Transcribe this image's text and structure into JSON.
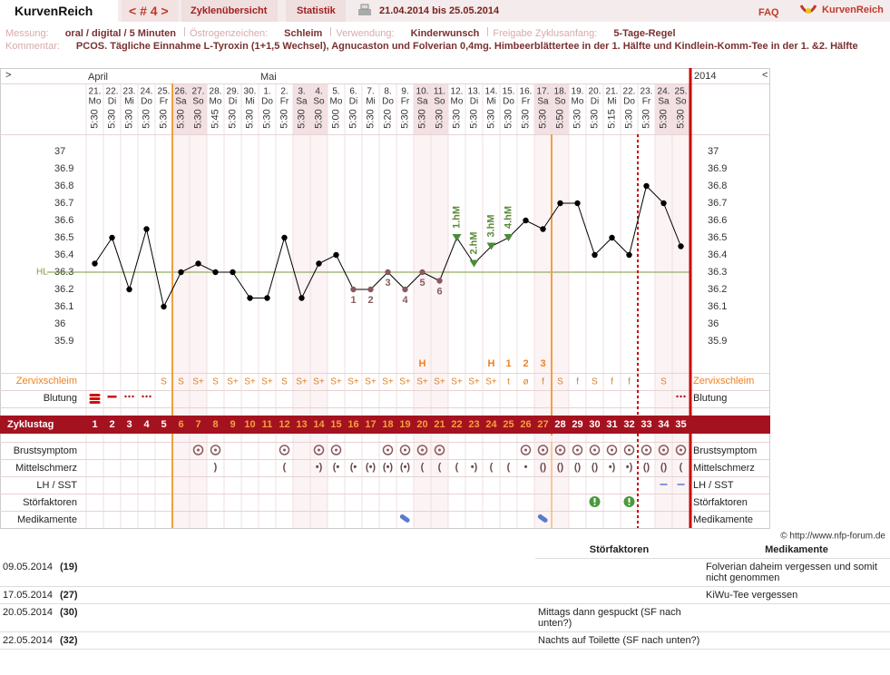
{
  "header": {
    "brand": "KurvenReich",
    "cycle_nav": "< # 4 >",
    "tabs": [
      "Zyklenübersicht",
      "Statistik"
    ],
    "date_range": "21.04.2014 bis 25.05.2014",
    "faq": "FAQ",
    "logo": "KurvenReich"
  },
  "info": {
    "fields": [
      {
        "label": "Messung:",
        "value": "oral / digital / 5 Minuten"
      },
      {
        "label": "Östrogenzeichen:",
        "value": "Schleim"
      },
      {
        "label": "Verwendung:",
        "value": "Kinderwunsch"
      },
      {
        "label": "Freigabe Zyklusanfang:",
        "value": "5-Tage-Regel"
      }
    ],
    "comment_label": "Kommentar:",
    "comment": "PCOS. Tägliche Einnahme L-Tyroxin (1+1,5 Wechsel), Agnucaston und Folverian 0,4mg. Himbeerblättertee in der 1. Hälfte und Kindlein-Komm-Tee in der 1. &2. Hälfte"
  },
  "chart_data": {
    "type": "line",
    "nav_left": ">",
    "nav_right": "<",
    "year": "2014",
    "months": [
      "April",
      "Mai"
    ],
    "categories": [
      "21.",
      "22.",
      "23.",
      "24.",
      "25.",
      "26.",
      "27.",
      "28.",
      "29.",
      "30.",
      "1.",
      "2.",
      "3.",
      "4.",
      "5.",
      "6.",
      "7.",
      "8.",
      "9.",
      "10.",
      "11.",
      "12.",
      "13.",
      "14.",
      "15.",
      "16.",
      "17.",
      "18.",
      "19.",
      "20.",
      "21.",
      "22.",
      "23.",
      "24.",
      "25."
    ],
    "weekdays": [
      "Mo",
      "Di",
      "Mi",
      "Do",
      "Fr",
      "Sa",
      "So",
      "Mo",
      "Di",
      "Mi",
      "Do",
      "Fr",
      "Sa",
      "So",
      "Mo",
      "Di",
      "Mi",
      "Do",
      "Fr",
      "Sa",
      "So",
      "Mo",
      "Di",
      "Mi",
      "Do",
      "Fr",
      "Sa",
      "So",
      "Mo",
      "Di",
      "Mi",
      "Do",
      "Fr",
      "Sa",
      "So"
    ],
    "times": [
      "5:30",
      "5:30",
      "5:30",
      "5:30",
      "5:30",
      "5:30",
      "5:30",
      "5:45",
      "5:30",
      "5:30",
      "5:30",
      "5:30",
      "5:30",
      "5:30",
      "5:00",
      "5:30",
      "5:30",
      "5:20",
      "5:30",
      "5:30",
      "5:30",
      "5:30",
      "5:30",
      "5:30",
      "5:30",
      "5:30",
      "5:30",
      "5:50",
      "5:30",
      "5:30",
      "5:15",
      "5:30",
      "5:30",
      "5:30",
      "5:30"
    ],
    "values": [
      36.35,
      36.5,
      36.2,
      36.55,
      36.1,
      36.3,
      36.35,
      36.3,
      36.3,
      36.15,
      36.15,
      36.5,
      36.15,
      36.35,
      36.4,
      36.2,
      36.2,
      36.3,
      36.2,
      36.3,
      36.25,
      36.5,
      36.35,
      36.45,
      36.5,
      36.6,
      36.55,
      36.7,
      36.7,
      36.4,
      36.5,
      36.4,
      36.8,
      36.7,
      36.45
    ],
    "color": "#000000",
    "ylim": [
      35.8,
      37.1
    ],
    "yticks": [
      37,
      36.9,
      36.8,
      36.7,
      36.6,
      36.5,
      36.4,
      36.3,
      36.2,
      36.1,
      36,
      35.9
    ],
    "cover_line": {
      "value": 36.3,
      "label": "HL",
      "color": "#7a9a3a"
    },
    "low_labels": [
      null,
      null,
      null,
      null,
      null,
      null,
      null,
      null,
      null,
      null,
      null,
      null,
      null,
      null,
      null,
      "1",
      "2",
      "3",
      "4",
      "5",
      "6",
      null,
      null,
      null,
      null,
      null,
      null,
      null,
      null,
      null,
      null,
      null,
      null,
      null,
      null
    ],
    "high_labels": [
      null,
      null,
      null,
      null,
      null,
      null,
      null,
      null,
      null,
      null,
      null,
      null,
      null,
      null,
      null,
      null,
      null,
      null,
      null,
      null,
      null,
      "1.hM",
      "2.hM",
      "3.hM",
      "4.hM",
      null,
      null,
      null,
      null,
      null,
      null,
      null,
      null,
      null,
      null
    ],
    "peak_marks": [
      null,
      null,
      null,
      null,
      null,
      null,
      null,
      null,
      null,
      null,
      null,
      null,
      null,
      null,
      null,
      null,
      null,
      null,
      null,
      "H",
      null,
      null,
      null,
      "H",
      "1",
      "2",
      "3",
      null,
      null,
      null,
      null,
      null,
      null,
      null,
      null
    ],
    "cervix_label": "Zervixschleim",
    "cervix": [
      null,
      null,
      null,
      null,
      "S",
      "S",
      "S+",
      "S",
      "S+",
      "S+",
      "S+",
      "S",
      "S+",
      "S+",
      "S+",
      "S+",
      "S+",
      "S+",
      "S+",
      "S+",
      "S+",
      "S+",
      "S+",
      "S+",
      "t",
      "ø",
      "f",
      "S",
      "f",
      "S",
      "f",
      "f",
      null,
      "S",
      null
    ],
    "bleeding_label": "Blutung",
    "cycle_day_label": "Zyklustag",
    "cycle_days": [
      1,
      2,
      3,
      4,
      5,
      6,
      7,
      8,
      9,
      10,
      11,
      12,
      13,
      14,
      15,
      16,
      17,
      18,
      19,
      20,
      21,
      22,
      23,
      24,
      25,
      26,
      27,
      28,
      29,
      30,
      31,
      32,
      33,
      34,
      35
    ],
    "symptom_labels": [
      "Brustsymptom",
      "Mittelschmerz",
      "LH / SST",
      "Störfaktoren",
      "Medikamente"
    ]
  },
  "footer": {
    "copyright": "© http://www.nfp-forum.de"
  },
  "table": {
    "headers": [
      "Störfaktoren",
      "Medikamente"
    ],
    "rows": [
      [
        "09.05.2014",
        "(19)",
        null,
        "Folverian daheim vergessen und somit nicht genommen"
      ],
      [
        "17.05.2014",
        "(27)",
        null,
        "KiWu-Tee vergessen"
      ],
      [
        "20.05.2014",
        "(30)",
        "Mittags dann gespuckt (SF nach unten?)",
        null
      ],
      [
        "22.05.2014",
        "(32)",
        "Nachts auf Toilette (SF nach unten?)",
        null
      ]
    ]
  }
}
